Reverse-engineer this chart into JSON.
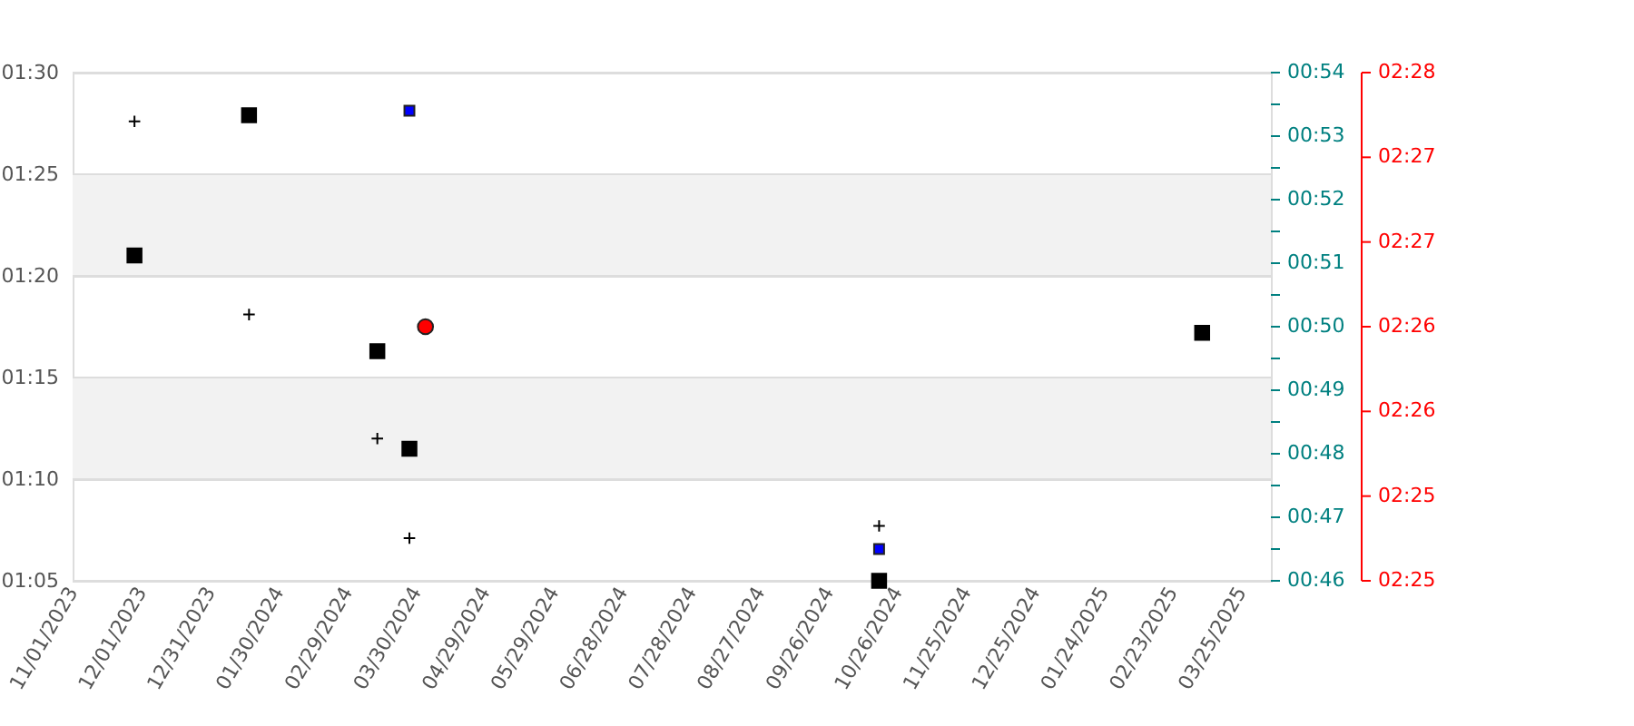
{
  "chart_data": {
    "type": "scatter",
    "xlim": [
      "2023-11-01",
      "2025-04-07"
    ],
    "xticks": [
      {
        "value": "2023-11-01",
        "label": "11/01/2023"
      },
      {
        "value": "2023-12-01",
        "label": "12/01/2023"
      },
      {
        "value": "2023-12-31",
        "label": "12/31/2023"
      },
      {
        "value": "2024-01-30",
        "label": "01/30/2024"
      },
      {
        "value": "2024-02-29",
        "label": "02/29/2024"
      },
      {
        "value": "2024-03-30",
        "label": "03/30/2024"
      },
      {
        "value": "2024-04-29",
        "label": "04/29/2024"
      },
      {
        "value": "2024-05-29",
        "label": "05/29/2024"
      },
      {
        "value": "2024-06-28",
        "label": "06/28/2024"
      },
      {
        "value": "2024-07-28",
        "label": "07/28/2024"
      },
      {
        "value": "2024-08-27",
        "label": "08/27/2024"
      },
      {
        "value": "2024-09-26",
        "label": "09/26/2024"
      },
      {
        "value": "2024-10-26",
        "label": "10/26/2024"
      },
      {
        "value": "2024-11-25",
        "label": "11/25/2024"
      },
      {
        "value": "2024-12-25",
        "label": "12/25/2024"
      },
      {
        "value": "2025-01-24",
        "label": "01/24/2025"
      },
      {
        "value": "2025-02-23",
        "label": "02/23/2025"
      },
      {
        "value": "2025-03-25",
        "label": "03/25/2025"
      }
    ],
    "ylim": [
      65,
      90
    ],
    "yticks": [
      {
        "value": 65,
        "label": "01:05"
      },
      {
        "value": 70,
        "label": "01:10"
      },
      {
        "value": 75,
        "label": "01:15"
      },
      {
        "value": 80,
        "label": "01:20"
      },
      {
        "value": 85,
        "label": "01:25"
      },
      {
        "value": 90,
        "label": "01:30"
      }
    ],
    "y2lim": [
      46,
      54
    ],
    "y2ticks": [
      {
        "value": 46,
        "label": "00:46"
      },
      {
        "value": 46.5,
        "label": null
      },
      {
        "value": 47,
        "label": "00:47"
      },
      {
        "value": 47.5,
        "label": null
      },
      {
        "value": 48,
        "label": "00:48"
      },
      {
        "value": 48.5,
        "label": null
      },
      {
        "value": 49,
        "label": "00:49"
      },
      {
        "value": 49.5,
        "label": null
      },
      {
        "value": 50,
        "label": "00:50"
      },
      {
        "value": 50.5,
        "label": null
      },
      {
        "value": 51,
        "label": "00:51"
      },
      {
        "value": 51.5,
        "label": null
      },
      {
        "value": 52,
        "label": "00:52"
      },
      {
        "value": 52.5,
        "label": null
      },
      {
        "value": 53,
        "label": "00:53"
      },
      {
        "value": 53.5,
        "label": null
      },
      {
        "value": 54,
        "label": "00:54"
      }
    ],
    "y3lim": [
      145,
      148
    ],
    "y3ticks": [
      {
        "value": 145,
        "label": "02:25"
      },
      {
        "value": 145.5,
        "label": "02:25"
      },
      {
        "value": 146,
        "label": "02:26"
      },
      {
        "value": 146.5,
        "label": "02:26"
      },
      {
        "value": 147,
        "label": "02:27"
      },
      {
        "value": 147.5,
        "label": "02:27"
      },
      {
        "value": 148,
        "label": "02:28"
      }
    ],
    "grid": "y",
    "bands": [
      {
        "axis": "y",
        "from": 80,
        "to": 85,
        "color": "#f2f2f2"
      },
      {
        "axis": "y",
        "from": 70,
        "to": 75,
        "color": "#f2f2f2"
      }
    ],
    "series": [
      {
        "color": "#000000",
        "marker": "square",
        "x": [
          "2023-11-28",
          "2024-01-17",
          "2024-03-13",
          "2024-03-27",
          "2024-10-18",
          "2025-03-08"
        ],
        "values": [
          81.0,
          87.9,
          76.3,
          71.5,
          65.0,
          77.2
        ]
      },
      {
        "color": "#000000",
        "marker": "cross",
        "x": [
          "2023-11-28",
          "2024-01-17",
          "2024-03-13",
          "2024-03-27",
          "2024-10-18"
        ],
        "values": [
          87.6,
          78.1,
          72.0,
          67.1,
          67.7
        ]
      },
      {
        "color": "#0000ff",
        "marker": "square",
        "axis": "y2",
        "x": [
          "2024-03-27",
          "2024-10-18"
        ],
        "values": [
          53.4,
          46.5
        ]
      },
      {
        "color": "#ff0000",
        "marker": "circle",
        "axis": "y3",
        "x": [
          "2024-04-03"
        ],
        "values": [
          146.5
        ]
      }
    ]
  }
}
